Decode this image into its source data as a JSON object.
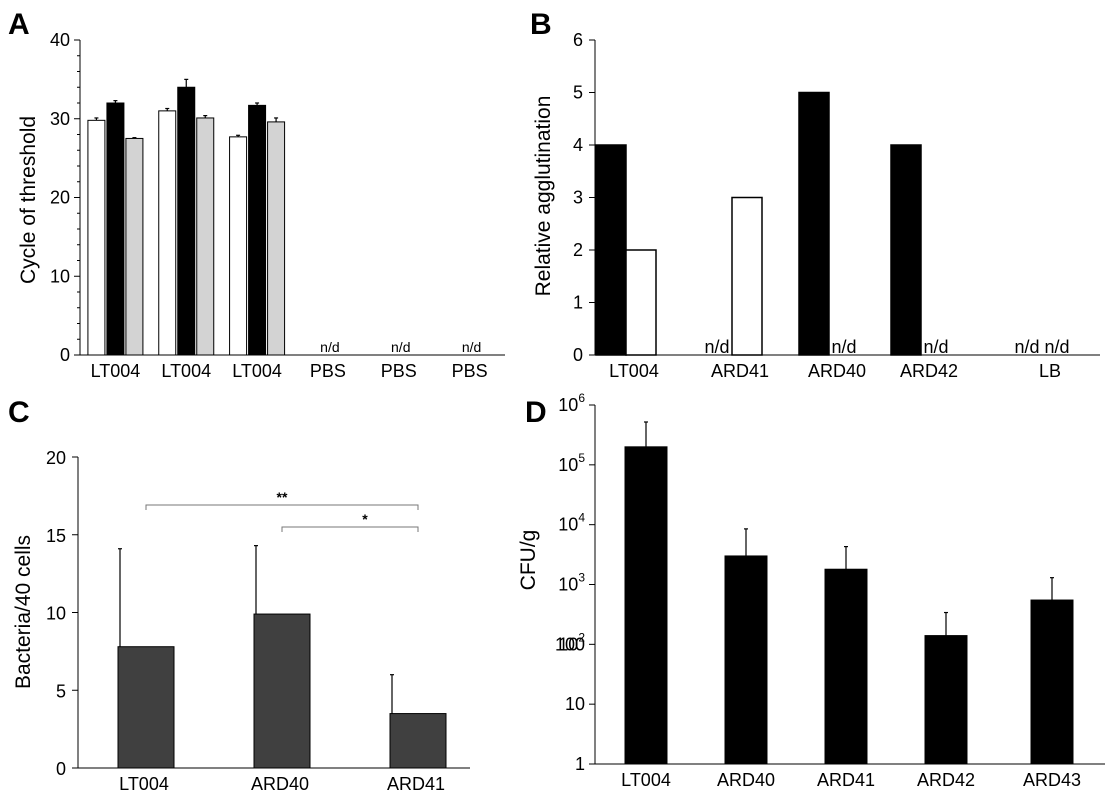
{
  "chart_data": [
    {
      "panel": "A",
      "type": "bar",
      "ylabel": "Cycle of threshold",
      "ylim": [
        0,
        40
      ],
      "yticks": [
        0,
        10,
        20,
        30,
        40
      ],
      "categories": [
        "LT004",
        "LT004",
        "LT004",
        "PBS",
        "PBS",
        "PBS"
      ],
      "series": [
        {
          "values": [
            29.8,
            31,
            27.7,
            null,
            null,
            null
          ],
          "errors": [
            0.3,
            0.3,
            0.2,
            null,
            null,
            null
          ],
          "color": "#ffffff"
        },
        {
          "values": [
            32,
            34,
            31.7,
            null,
            null,
            null
          ],
          "errors": [
            0.3,
            1.0,
            0.3,
            null,
            null,
            null
          ],
          "color": "#000000"
        },
        {
          "values": [
            27.5,
            30.1,
            29.6,
            null,
            null,
            null
          ],
          "errors": [
            0.1,
            0.3,
            0.5,
            null,
            null,
            null
          ],
          "color": "#d3d3d3"
        }
      ],
      "annotations": [
        "n/d",
        "n/d",
        "n/d"
      ]
    },
    {
      "panel": "B",
      "type": "bar",
      "ylabel": "Relative agglutination",
      "ylim": [
        0,
        6
      ],
      "yticks": [
        0,
        1,
        2,
        3,
        4,
        5,
        6
      ],
      "categories": [
        "LT004",
        "ARD41",
        "ARD40",
        "ARD42",
        "LB"
      ],
      "series": [
        {
          "values": [
            4,
            null,
            5,
            4,
            null
          ],
          "color": "#000000"
        },
        {
          "values": [
            2,
            3,
            null,
            null,
            null
          ],
          "color": "#ffffff"
        }
      ],
      "annotations": [
        "n/d",
        "n/d",
        "n/d",
        "n/d",
        "n/d"
      ]
    },
    {
      "panel": "C",
      "type": "bar",
      "ylabel": "Bacteria/40 cells",
      "ylim": [
        0,
        20
      ],
      "yticks": [
        0,
        5,
        10,
        15,
        20
      ],
      "categories": [
        "LT004",
        "ARD40",
        "ARD41"
      ],
      "values": [
        7.8,
        9.9,
        3.5
      ],
      "errors": [
        6.3,
        4.4,
        2.5
      ],
      "color": "#404040",
      "significance": [
        {
          "from": "LT004",
          "to": "ARD41",
          "label": "**"
        },
        {
          "from": "ARD40",
          "to": "ARD41",
          "label": "*"
        }
      ]
    },
    {
      "panel": "D",
      "type": "bar",
      "ylabel": "CFU/g",
      "yscale": "log",
      "ylim": [
        1,
        1000000
      ],
      "yticks_plain": [
        "1",
        "10",
        "100"
      ],
      "yticks_power": [
        {
          "base": "10",
          "exp": "2"
        },
        {
          "base": "10",
          "exp": "3"
        },
        {
          "base": "10",
          "exp": "4"
        },
        {
          "base": "10",
          "exp": "5"
        },
        {
          "base": "10",
          "exp": "6"
        }
      ],
      "categories": [
        "LT004",
        "ARD40",
        "ARD41",
        "ARD42",
        "ARD43"
      ],
      "values": [
        200000,
        3000,
        1800,
        140,
        550
      ],
      "error_tops": [
        520000,
        8500,
        4300,
        340,
        1300
      ],
      "color": "#000000"
    }
  ]
}
